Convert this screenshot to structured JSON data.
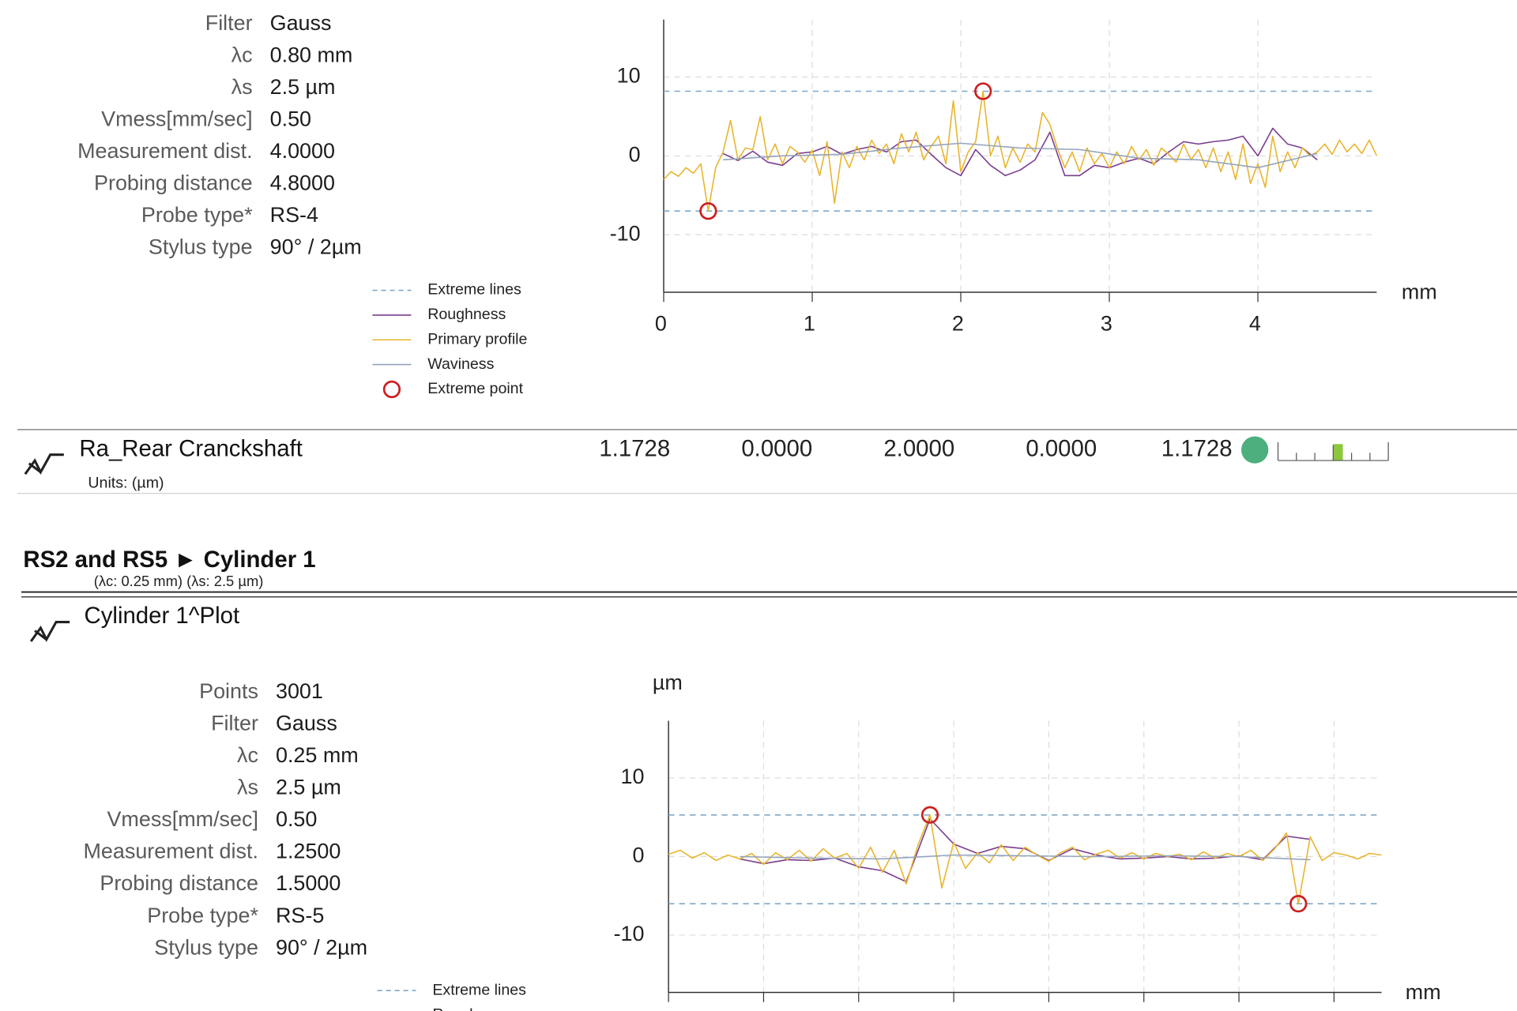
{
  "section1": {
    "params": [
      [
        "Filter",
        "Gauss"
      ],
      [
        "λc",
        "0.80 mm"
      ],
      [
        "λs",
        "2.5 µm"
      ],
      [
        "Vmess[mm/sec]",
        "0.50"
      ],
      [
        "Measurement dist.",
        "4.0000"
      ],
      [
        "Probing distance",
        "4.8000"
      ],
      [
        "Probe type*",
        "RS-4"
      ],
      [
        "Stylus type",
        "90° / 2µm"
      ]
    ]
  },
  "result": {
    "name": "Ra_Rear Cranckshaft",
    "units": "Units: (µm)",
    "values": [
      "1.1728",
      "0.0000",
      "2.0000",
      "0.0000",
      "1.1728"
    ]
  },
  "section2": {
    "title": "RS2 and RS5 ► Cylinder 1",
    "subtitle": "(λc: 0.25 mm) (λs: 2.5 µm)",
    "plot_title": "Cylinder 1^Plot",
    "params": [
      [
        "Points",
        "3001"
      ],
      [
        "Filter",
        "Gauss"
      ],
      [
        "λc",
        "0.25 mm"
      ],
      [
        "λs",
        "2.5 µm"
      ],
      [
        "Vmess[mm/sec]",
        "0.50"
      ],
      [
        "Measurement dist.",
        "1.2500"
      ],
      [
        "Probing distance",
        "1.5000"
      ],
      [
        "Probe type*",
        "RS-5"
      ],
      [
        "Stylus type",
        "90° / 2µm"
      ]
    ]
  },
  "chart_data": [
    {
      "type": "line",
      "xlabel": "mm",
      "xlim": [
        0,
        4.8
      ],
      "xticks": [
        0,
        1,
        2,
        3,
        4
      ],
      "ylim": [
        -17.3,
        17.3
      ],
      "yticks": [
        -10,
        0,
        10
      ],
      "grid": true,
      "series": [
        {
          "name": "Extreme lines",
          "style": "extreme-lines",
          "color": "#7fa8c8",
          "values": [
            8.2,
            -7.0
          ]
        },
        {
          "name": "Roughness",
          "style": "line",
          "color": "#7a3d8f",
          "x": [
            0.4,
            0.5,
            0.6,
            0.7,
            0.8,
            0.9,
            1,
            1.1,
            1.2,
            1.3,
            1.4,
            1.5,
            1.6,
            1.7,
            1.8,
            1.9,
            2,
            2.1,
            2.2,
            2.3,
            2.4,
            2.5,
            2.6,
            2.7,
            2.8,
            2.9,
            3,
            3.1,
            3.2,
            3.3,
            3.4,
            3.5,
            3.6,
            3.7,
            3.8,
            3.9,
            4,
            4.1,
            4.2,
            4.3,
            4.4
          ],
          "values": [
            0.3,
            -0.6,
            0.6,
            -0.8,
            -1.2,
            0.3,
            0.5,
            1.2,
            0.2,
            0.8,
            1.2,
            0.5,
            1.8,
            2.0,
            0.2,
            -1.5,
            -2.5,
            0.8,
            -1.2,
            -2.5,
            -1.8,
            -0.5,
            3.0,
            -2.5,
            -2.5,
            -1.2,
            -1.5,
            -0.8,
            -0.3,
            -1.0,
            0.5,
            1.8,
            1.5,
            1.8,
            2.0,
            2.5,
            0.0,
            3.5,
            1.5,
            1.0,
            -0.5
          ]
        },
        {
          "name": "Primary profile",
          "style": "line",
          "color": "#e8b52e",
          "x": [
            0,
            0.05,
            0.1,
            0.15,
            0.2,
            0.25,
            0.3,
            0.35,
            0.4,
            0.45,
            0.5,
            0.55,
            0.6,
            0.65,
            0.7,
            0.75,
            0.8,
            0.85,
            0.9,
            0.95,
            1,
            1.05,
            1.1,
            1.15,
            1.2,
            1.25,
            1.3,
            1.35,
            1.4,
            1.45,
            1.5,
            1.55,
            1.6,
            1.65,
            1.7,
            1.75,
            1.8,
            1.85,
            1.9,
            1.95,
            2,
            2.05,
            2.1,
            2.15,
            2.2,
            2.25,
            2.3,
            2.35,
            2.4,
            2.45,
            2.5,
            2.55,
            2.6,
            2.65,
            2.7,
            2.75,
            2.8,
            2.85,
            2.9,
            2.95,
            3,
            3.05,
            3.1,
            3.15,
            3.2,
            3.25,
            3.3,
            3.35,
            3.4,
            3.45,
            3.5,
            3.55,
            3.6,
            3.65,
            3.7,
            3.75,
            3.8,
            3.85,
            3.9,
            3.95,
            4,
            4.05,
            4.1,
            4.15,
            4.2,
            4.25,
            4.3,
            4.35,
            4.4,
            4.45,
            4.5,
            4.55,
            4.6,
            4.65,
            4.7,
            4.75,
            4.8
          ],
          "values": [
            -3.0,
            -2.0,
            -2.6,
            -1.5,
            -2.2,
            -1.0,
            -7.0,
            -1.5,
            0.5,
            4.5,
            -0.5,
            1.0,
            0.8,
            5.0,
            -0.5,
            1.5,
            -1.0,
            1.2,
            0.5,
            -0.8,
            0.7,
            -2.5,
            1.8,
            -6.0,
            0.5,
            -1.5,
            1.2,
            -0.5,
            2.0,
            0.3,
            1.5,
            -1.0,
            2.8,
            0.5,
            3.0,
            -0.5,
            1.2,
            2.5,
            -1.0,
            7.0,
            -2.0,
            0.5,
            1.8,
            8.2,
            0.0,
            2.5,
            -1.5,
            1.0,
            -0.8,
            1.5,
            0.5,
            5.5,
            4.0,
            1.0,
            -1.5,
            0.5,
            -2.0,
            1.0,
            -1.0,
            0.3,
            -1.5,
            0.5,
            -1.0,
            1.2,
            -0.5,
            0.8,
            -1.2,
            1.0,
            0.2,
            -0.8,
            1.5,
            -0.5,
            0.8,
            -1.5,
            1.0,
            -2.0,
            0.5,
            -3.0,
            1.5,
            -3.5,
            -1.0,
            -4.0,
            2.5,
            -2.0,
            0.5,
            -1.5,
            1.0,
            0.0,
            0.5,
            1.5,
            0.2,
            2.0,
            0.5,
            1.5,
            0.3,
            2.0,
            0.0
          ]
        },
        {
          "name": "Waviness",
          "style": "line",
          "color": "#93a4bd",
          "x": [
            0.4,
            0.8,
            1.2,
            1.6,
            2.0,
            2.4,
            2.8,
            3.2,
            3.6,
            4.0,
            4.4
          ],
          "values": [
            -0.5,
            0.0,
            0.2,
            1.0,
            1.6,
            1.0,
            0.8,
            -0.3,
            -0.5,
            -1.5,
            0.3
          ]
        },
        {
          "name": "Extreme point",
          "style": "marker",
          "color": "#cc1f1f",
          "x": [
            0.3,
            2.15
          ],
          "values": [
            -7.0,
            8.2
          ]
        }
      ]
    },
    {
      "type": "line",
      "xlabel": "mm",
      "ylabel": "µm",
      "xlim": [
        0,
        1.5
      ],
      "xticks": [
        0,
        0.2,
        0.4,
        0.6,
        0.8,
        1,
        1.2,
        1.4
      ],
      "xtick_labels": false,
      "ylim": [
        -17.3,
        17.3
      ],
      "yticks": [
        -10,
        0,
        10
      ],
      "grid": true,
      "series": [
        {
          "name": "Extreme lines",
          "style": "extreme-lines",
          "color": "#7fa8c8",
          "values": [
            5.3,
            -6.0
          ]
        },
        {
          "name": "Roughness",
          "style": "line",
          "color": "#7a3d8f",
          "x": [
            0.15,
            0.2,
            0.25,
            0.3,
            0.35,
            0.4,
            0.45,
            0.5,
            0.55,
            0.6,
            0.65,
            0.7,
            0.75,
            0.8,
            0.85,
            0.9,
            0.95,
            1,
            1.05,
            1.1,
            1.15,
            1.2,
            1.25,
            1.3,
            1.35
          ],
          "values": [
            -0.3,
            -0.9,
            -0.4,
            -0.5,
            -0.2,
            -1.3,
            -1.8,
            -3.2,
            4.8,
            1.6,
            0.4,
            1.3,
            1.0,
            -0.5,
            1.0,
            0.2,
            -0.3,
            -0.2,
            0.0,
            -0.3,
            -0.2,
            0.1,
            -0.4,
            2.6,
            2.2
          ]
        },
        {
          "style": "line",
          "color": "#e8b52e",
          "x": [
            0,
            0.025,
            0.05,
            0.075,
            0.1,
            0.125,
            0.15,
            0.175,
            0.2,
            0.225,
            0.25,
            0.275,
            0.3,
            0.325,
            0.35,
            0.375,
            0.4,
            0.425,
            0.45,
            0.475,
            0.5,
            0.525,
            0.55,
            0.575,
            0.6,
            0.625,
            0.65,
            0.675,
            0.7,
            0.725,
            0.75,
            0.775,
            0.8,
            0.825,
            0.85,
            0.875,
            0.9,
            0.925,
            0.95,
            0.975,
            1,
            1.025,
            1.05,
            1.075,
            1.1,
            1.125,
            1.15,
            1.175,
            1.2,
            1.225,
            1.25,
            1.275,
            1.3,
            1.325,
            1.35,
            1.375,
            1.4,
            1.425,
            1.45,
            1.475,
            1.5
          ],
          "values": [
            0.3,
            0.8,
            -0.2,
            0.5,
            -0.5,
            0.2,
            -0.3,
            0.4,
            -1.0,
            0.5,
            -0.4,
            0.8,
            -0.6,
            1.0,
            -0.2,
            0.4,
            -1.5,
            1.2,
            -2.0,
            0.8,
            -3.5,
            1.5,
            5.3,
            -4.0,
            1.8,
            -1.5,
            0.5,
            -0.8,
            1.5,
            -0.5,
            1.2,
            0.2,
            -0.6,
            0.5,
            1.2,
            -0.4,
            0.3,
            0.8,
            -0.2,
            0.5,
            -0.3,
            0.4,
            0.0,
            0.3,
            -0.4,
            0.6,
            -0.2,
            0.4,
            0.0,
            0.8,
            -0.5,
            1.0,
            3.0,
            -6.0,
            2.5,
            -0.5,
            0.5,
            0.2,
            -0.3,
            0.4,
            0.2
          ]
        },
        {
          "style": "line",
          "color": "#93a4bd",
          "x": [
            0.15,
            0.3,
            0.45,
            0.6,
            0.75,
            0.9,
            1.05,
            1.2,
            1.35
          ],
          "values": [
            0.0,
            -0.2,
            -0.3,
            0.2,
            0.1,
            0.0,
            0.1,
            0.0,
            -0.4
          ]
        },
        {
          "style": "marker",
          "color": "#cc1f1f",
          "x": [
            0.55,
            1.325
          ],
          "values": [
            5.3,
            -6.0
          ]
        }
      ]
    }
  ]
}
